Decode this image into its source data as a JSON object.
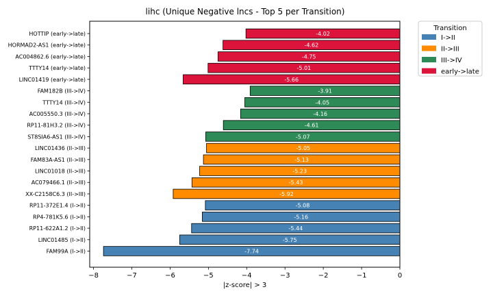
{
  "chart_data": {
    "type": "bar",
    "orientation": "horizontal",
    "title": "lihc (Unique Negative lncs - Top 5 per Transition)",
    "xlabel": "|z-score| > 3",
    "ylabel": "",
    "xlim": [
      -8.1,
      0
    ],
    "xticks": [
      -8,
      -7,
      -6,
      -5,
      -4,
      -3,
      -2,
      -1,
      0
    ],
    "grid": false,
    "legend": {
      "title": "Transition",
      "placement": "outside-top-right",
      "entries": [
        {
          "name": "I->II",
          "color": "#4682b4"
        },
        {
          "name": "II->III",
          "color": "#ff8c00"
        },
        {
          "name": "III->IV",
          "color": "#2e8b57"
        },
        {
          "name": "early->late",
          "color": "#dc143c"
        }
      ]
    },
    "bars": [
      {
        "label": "HOTTIP (early->late)",
        "value": -4.02,
        "group": "early->late",
        "value_label": "-4.02"
      },
      {
        "label": "HORMAD2-AS1 (early->late)",
        "value": -4.62,
        "group": "early->late",
        "value_label": "-4.62"
      },
      {
        "label": "AC004862.6 (early->late)",
        "value": -4.75,
        "group": "early->late",
        "value_label": "-4.75"
      },
      {
        "label": "TTTY14 (early->late)",
        "value": -5.01,
        "group": "early->late",
        "value_label": "-5.01"
      },
      {
        "label": "LINC01419 (early->late)",
        "value": -5.66,
        "group": "early->late",
        "value_label": "-5.66"
      },
      {
        "label": "FAM182B (III->IV)",
        "value": -3.91,
        "group": "III->IV",
        "value_label": "-3.91"
      },
      {
        "label": "TTTY14 (III->IV)",
        "value": -4.05,
        "group": "III->IV",
        "value_label": "-4.05"
      },
      {
        "label": "AC005550.3 (III->IV)",
        "value": -4.16,
        "group": "III->IV",
        "value_label": "-4.16"
      },
      {
        "label": "RP11-81H3.2 (III->IV)",
        "value": -4.61,
        "group": "III->IV",
        "value_label": "-4.61"
      },
      {
        "label": "ST8SIA6-AS1 (III->IV)",
        "value": -5.07,
        "group": "III->IV",
        "value_label": "-5.07"
      },
      {
        "label": "LINC01436 (II->III)",
        "value": -5.05,
        "group": "II->III",
        "value_label": "-5.05"
      },
      {
        "label": "FAM83A-AS1 (II->III)",
        "value": -5.13,
        "group": "II->III",
        "value_label": "-5.13"
      },
      {
        "label": "LINC01018 (II->III)",
        "value": -5.23,
        "group": "II->III",
        "value_label": "-5.23"
      },
      {
        "label": "AC079466.1 (II->III)",
        "value": -5.43,
        "group": "II->III",
        "value_label": "-5.43"
      },
      {
        "label": "XX-C2158C6.3 (II->III)",
        "value": -5.92,
        "group": "II->III",
        "value_label": "-5.92"
      },
      {
        "label": "RP11-372E1.4 (I->II)",
        "value": -5.08,
        "group": "I->II",
        "value_label": "-5.08"
      },
      {
        "label": "RP4-781K5.6 (I->II)",
        "value": -5.16,
        "group": "I->II",
        "value_label": "-5.16"
      },
      {
        "label": "RP11-622A1.2 (I->II)",
        "value": -5.44,
        "group": "I->II",
        "value_label": "-5.44"
      },
      {
        "label": "LINC01485 (I->II)",
        "value": -5.75,
        "group": "I->II",
        "value_label": "-5.75"
      },
      {
        "label": "FAM99A (I->II)",
        "value": -7.74,
        "group": "I->II",
        "value_label": "-7.74"
      }
    ]
  }
}
